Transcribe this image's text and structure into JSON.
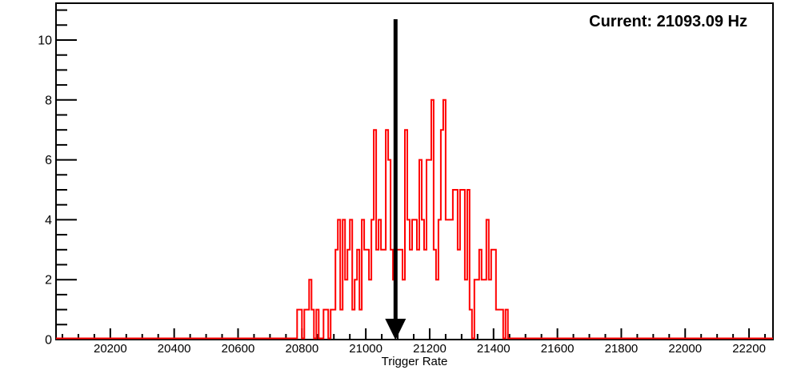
{
  "overlay": {
    "current_label": "Current: 21093.09 Hz",
    "current_value_hz": 21093.09
  },
  "chart_data": {
    "type": "bar",
    "subtype": "step-histogram",
    "title": "",
    "xlabel": "Trigger Rate",
    "ylabel": "",
    "xlim": [
      20030,
      22275
    ],
    "ylim": [
      0,
      11.23
    ],
    "grid": false,
    "legend": null,
    "x_major_ticks": [
      20200,
      20400,
      20600,
      20800,
      21000,
      21200,
      21400,
      21600,
      21800,
      22000,
      22200
    ],
    "x_minor_step": 50,
    "y_major_ticks": [
      0,
      2,
      4,
      6,
      8,
      10
    ],
    "y_minor_step": 0.5,
    "line_color": "#ff0000",
    "frame_color": "#000000",
    "histogram": {
      "bin_start": 20785,
      "bin_width": 7.5,
      "counts": [
        1,
        1,
        0,
        1,
        1,
        2,
        1,
        0,
        1,
        0,
        0,
        1,
        1,
        0,
        1,
        1,
        3,
        4,
        1,
        4,
        2,
        3,
        4,
        1,
        2,
        3,
        1,
        4,
        3,
        3,
        2,
        4,
        7,
        3,
        4,
        3,
        3,
        7,
        6,
        3,
        2,
        3,
        3,
        3,
        2,
        7,
        4,
        3,
        4,
        4,
        3,
        6,
        4,
        3,
        6,
        6,
        8,
        3,
        2,
        4,
        7,
        8,
        4,
        4,
        4,
        5,
        5,
        3,
        5,
        5,
        2,
        5,
        1,
        0,
        2,
        2,
        3,
        2,
        2,
        4,
        2,
        3,
        3,
        1,
        1,
        1,
        0,
        1,
        0,
        0
      ]
    },
    "marker_arrow": {
      "x": 21093.09,
      "direction": "down",
      "color": "#000000"
    }
  }
}
